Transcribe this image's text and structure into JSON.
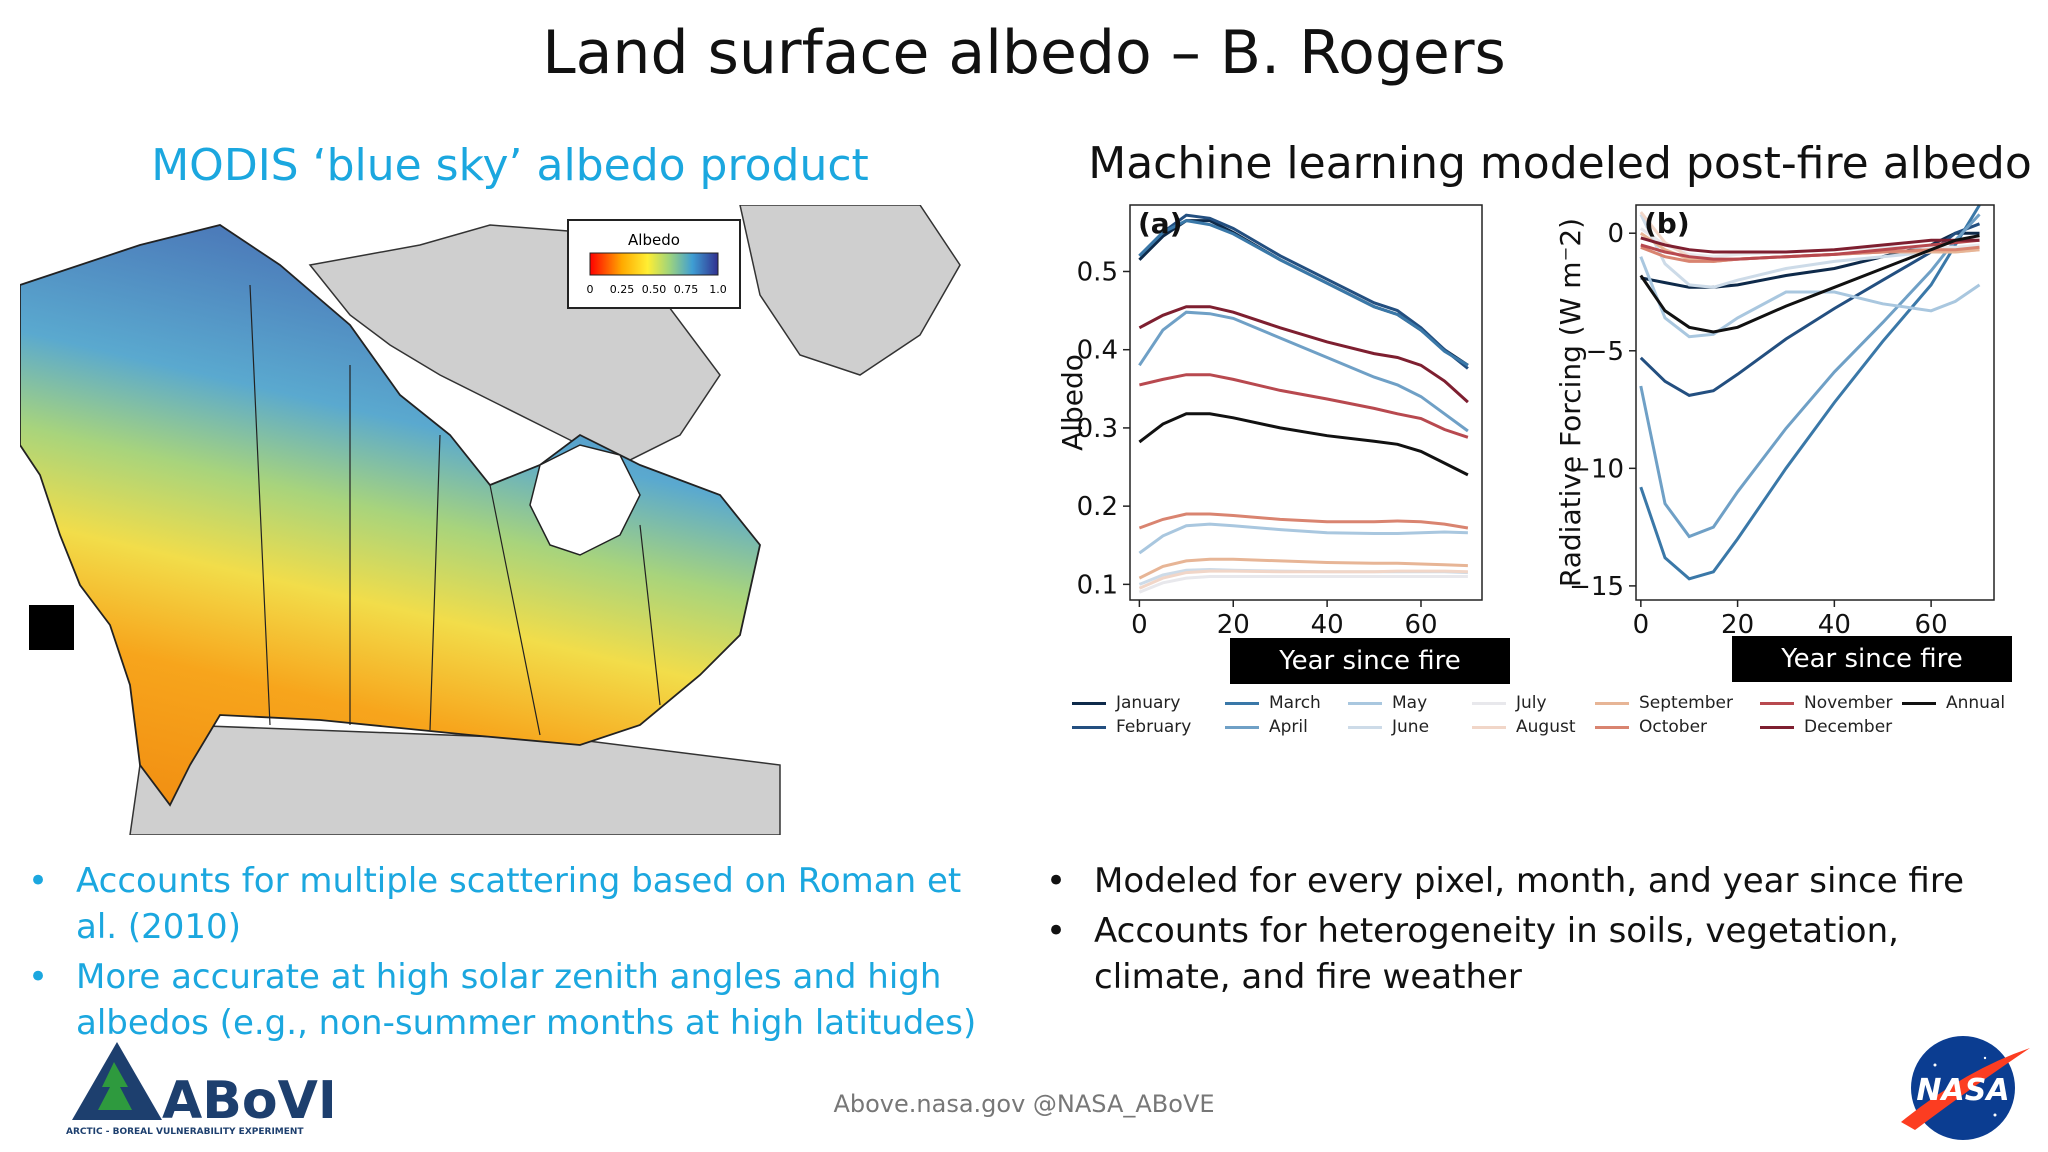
{
  "slide": {
    "title": "Land surface albedo – B. Rogers",
    "left_subtitle": "MODIS ‘blue sky’ albedo product",
    "right_subtitle": "Machine learning modeled post-fire albedo",
    "footer": "Above.nasa.gov @NASA_ABoVE"
  },
  "map": {
    "colorbar_title": "Albedo",
    "colorbar_ticks": [
      "0",
      "0.25",
      "0.50",
      "0.75",
      "1.0"
    ],
    "colormap": [
      "#ff0000",
      "#ffaa00",
      "#ffee33",
      "#9fd47c",
      "#3f9ed3",
      "#303090"
    ]
  },
  "left_bullets": [
    "Accounts for multiple scattering based on Roman et al. (2010)",
    "More accurate at high solar zenith angles and high albedos (e.g., non-summer months at high latitudes)"
  ],
  "right_bullets": [
    "Modeled for every pixel, month, and year since fire",
    "Accounts for heterogeneity in soils, vegetation, climate, and fire weather"
  ],
  "logos": {
    "above_text": "ABoVE",
    "above_tagline": "ARCTIC - BOREAL VULNERABILITY EXPERIMENT",
    "nasa_text": "NASA"
  },
  "chart_data": [
    {
      "type": "line",
      "panel_label": "(a)",
      "xlabel": "Year since fire",
      "ylabel": "Albedo",
      "xlim": [
        -2,
        73
      ],
      "ylim": [
        0.08,
        0.585
      ],
      "xticks": [
        0,
        20,
        40,
        60
      ],
      "yticks": [
        0.1,
        0.2,
        0.3,
        0.4,
        0.5
      ],
      "x": [
        0,
        5,
        10,
        15,
        20,
        30,
        40,
        50,
        55,
        60,
        65,
        70
      ],
      "series": [
        {
          "name": "January",
          "color": "#0e2a4a",
          "values": [
            0.515,
            0.545,
            0.565,
            0.565,
            0.55,
            0.515,
            0.485,
            0.455,
            0.445,
            0.425,
            0.4,
            0.38
          ]
        },
        {
          "name": "February",
          "color": "#234f80",
          "values": [
            0.52,
            0.55,
            0.572,
            0.568,
            0.555,
            0.52,
            0.49,
            0.46,
            0.45,
            0.428,
            0.4,
            0.376
          ]
        },
        {
          "name": "March",
          "color": "#3a78a8",
          "values": [
            0.52,
            0.55,
            0.565,
            0.56,
            0.548,
            0.515,
            0.485,
            0.455,
            0.445,
            0.425,
            0.398,
            0.38
          ]
        },
        {
          "name": "April",
          "color": "#6fa0c6",
          "values": [
            0.38,
            0.425,
            0.448,
            0.446,
            0.44,
            0.415,
            0.39,
            0.365,
            0.355,
            0.34,
            0.318,
            0.296
          ]
        },
        {
          "name": "May",
          "color": "#a9c7df",
          "values": [
            0.14,
            0.162,
            0.175,
            0.177,
            0.175,
            0.17,
            0.166,
            0.165,
            0.165,
            0.166,
            0.167,
            0.166
          ]
        },
        {
          "name": "June",
          "color": "#cddbe8",
          "values": [
            0.1,
            0.112,
            0.118,
            0.119,
            0.118,
            0.117,
            0.116,
            0.116,
            0.116,
            0.116,
            0.116,
            0.115
          ]
        },
        {
          "name": "July",
          "color": "#e8e8ec",
          "values": [
            0.09,
            0.102,
            0.108,
            0.11,
            0.11,
            0.11,
            0.11,
            0.11,
            0.11,
            0.11,
            0.11,
            0.11
          ]
        },
        {
          "name": "August",
          "color": "#f1d6c8",
          "values": [
            0.095,
            0.108,
            0.115,
            0.117,
            0.117,
            0.116,
            0.116,
            0.116,
            0.117,
            0.117,
            0.117,
            0.116
          ]
        },
        {
          "name": "September",
          "color": "#e7b596",
          "values": [
            0.108,
            0.123,
            0.13,
            0.132,
            0.132,
            0.13,
            0.128,
            0.127,
            0.127,
            0.126,
            0.125,
            0.124
          ]
        },
        {
          "name": "October",
          "color": "#d98470",
          "values": [
            0.172,
            0.183,
            0.19,
            0.19,
            0.188,
            0.183,
            0.18,
            0.18,
            0.181,
            0.18,
            0.177,
            0.172
          ]
        },
        {
          "name": "November",
          "color": "#b8494f",
          "values": [
            0.355,
            0.362,
            0.368,
            0.368,
            0.362,
            0.348,
            0.337,
            0.325,
            0.318,
            0.312,
            0.298,
            0.288
          ]
        },
        {
          "name": "December",
          "color": "#7e1f30",
          "values": [
            0.428,
            0.444,
            0.455,
            0.455,
            0.448,
            0.428,
            0.41,
            0.395,
            0.39,
            0.38,
            0.36,
            0.333
          ]
        },
        {
          "name": "Annual",
          "color": "#111111",
          "values": [
            0.282,
            0.305,
            0.318,
            0.318,
            0.313,
            0.3,
            0.29,
            0.283,
            0.279,
            0.27,
            0.255,
            0.24
          ]
        }
      ]
    },
    {
      "type": "line",
      "panel_label": "(b)",
      "xlabel": "Year since fire",
      "ylabel": "Radiative Forcing (W m⁻2)",
      "xlim": [
        -1,
        73
      ],
      "ylim": [
        -15.6,
        1.2
      ],
      "xticks": [
        0,
        20,
        40,
        60
      ],
      "yticks": [
        0,
        -5,
        -10,
        -15
      ],
      "x": [
        0,
        5,
        10,
        15,
        20,
        30,
        40,
        50,
        60,
        65,
        70
      ],
      "series": [
        {
          "name": "January",
          "color": "#0e2a4a",
          "values": [
            -1.9,
            -2.1,
            -2.3,
            -2.3,
            -2.2,
            -1.8,
            -1.5,
            -1.0,
            -0.5,
            0.0,
            0.0
          ]
        },
        {
          "name": "February",
          "color": "#234f80",
          "values": [
            -5.3,
            -6.3,
            -6.9,
            -6.7,
            -6.0,
            -4.5,
            -3.2,
            -2.0,
            -0.8,
            0.0,
            0.4
          ]
        },
        {
          "name": "March",
          "color": "#3a78a8",
          "values": [
            -10.8,
            -13.8,
            -14.7,
            -14.4,
            -13.0,
            -10.0,
            -7.2,
            -4.6,
            -2.2,
            -0.5,
            1.2
          ]
        },
        {
          "name": "April",
          "color": "#6fa0c6",
          "values": [
            -6.5,
            -11.5,
            -12.9,
            -12.5,
            -11.0,
            -8.3,
            -5.9,
            -3.8,
            -1.6,
            -0.3,
            0.8
          ]
        },
        {
          "name": "May",
          "color": "#a9c7df",
          "values": [
            -1.0,
            -3.6,
            -4.4,
            -4.3,
            -3.6,
            -2.5,
            -2.5,
            -3.0,
            -3.3,
            -2.9,
            -2.2
          ]
        },
        {
          "name": "June",
          "color": "#cddbe8",
          "values": [
            0.8,
            -1.3,
            -2.2,
            -2.3,
            -2.0,
            -1.5,
            -1.2,
            -1.0,
            -0.8,
            -0.7,
            -0.6
          ]
        },
        {
          "name": "July",
          "color": "#e8e8ec",
          "values": [
            0.2,
            -0.5,
            -0.9,
            -1.0,
            -0.9,
            -0.8,
            -0.7,
            -0.6,
            -0.6,
            -0.6,
            -0.5
          ]
        },
        {
          "name": "August",
          "color": "#f1d6c8",
          "values": [
            0.9,
            -0.4,
            -1.0,
            -1.2,
            -1.1,
            -1.0,
            -0.9,
            -0.8,
            -0.8,
            -0.8,
            -0.7
          ]
        },
        {
          "name": "September",
          "color": "#e7b596",
          "values": [
            0.0,
            -0.7,
            -1.1,
            -1.2,
            -1.1,
            -1.0,
            -0.9,
            -0.8,
            -0.8,
            -0.8,
            -0.7
          ]
        },
        {
          "name": "October",
          "color": "#d98470",
          "values": [
            -0.6,
            -1.0,
            -1.2,
            -1.2,
            -1.1,
            -1.0,
            -0.9,
            -0.8,
            -0.7,
            -0.7,
            -0.6
          ]
        },
        {
          "name": "November",
          "color": "#b8494f",
          "values": [
            -0.5,
            -0.8,
            -1.0,
            -1.1,
            -1.1,
            -1.0,
            -0.9,
            -0.7,
            -0.5,
            -0.4,
            -0.3
          ]
        },
        {
          "name": "December",
          "color": "#7e1f30",
          "values": [
            -0.2,
            -0.5,
            -0.7,
            -0.8,
            -0.8,
            -0.8,
            -0.7,
            -0.5,
            -0.3,
            -0.3,
            -0.3
          ]
        },
        {
          "name": "Annual",
          "color": "#111111",
          "values": [
            -1.8,
            -3.3,
            -4.0,
            -4.2,
            -4.0,
            -3.1,
            -2.3,
            -1.5,
            -0.7,
            -0.3,
            -0.1
          ]
        }
      ]
    }
  ]
}
